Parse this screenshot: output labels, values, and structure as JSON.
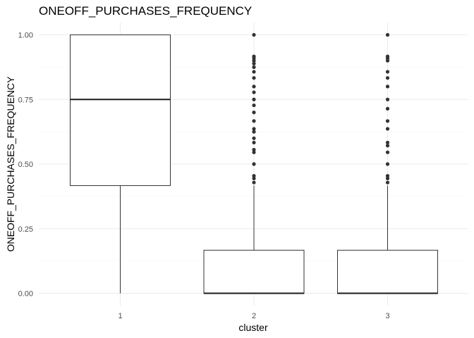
{
  "chart_data": {
    "type": "boxplot",
    "title": "ONEOFF_PURCHASES_FREQUENCY",
    "xlabel": "cluster",
    "ylabel": "ONEOFF_PURCHASES_FREQUENCY",
    "categories": [
      "1",
      "2",
      "3"
    ],
    "ylim": [
      -0.025,
      1.0
    ],
    "yticks": [
      0.0,
      0.25,
      0.5,
      0.75,
      1.0
    ],
    "ytick_labels": [
      "0.00",
      "0.25",
      "0.50",
      "0.75",
      "1.00"
    ],
    "grid": true,
    "legend": "none",
    "boxes": [
      {
        "category": "1",
        "whisker_low": 0.0,
        "q1": 0.4167,
        "median": 0.75,
        "q3": 1.0,
        "whisker_high": 1.0,
        "outliers": []
      },
      {
        "category": "2",
        "whisker_low": 0.0,
        "q1": 0.0,
        "median": 0.0,
        "q3": 0.1667,
        "whisker_high": 0.4167,
        "outliers": [
          0.4286,
          0.4444,
          0.4545,
          0.5,
          0.5455,
          0.5556,
          0.5833,
          0.6,
          0.625,
          0.6364,
          0.6667,
          0.7,
          0.7273,
          0.75,
          0.7778,
          0.8,
          0.8333,
          0.8571,
          0.875,
          0.8889,
          0.9,
          0.9091,
          0.9167,
          1.0
        ]
      },
      {
        "category": "3",
        "whisker_low": 0.0,
        "q1": 0.0,
        "median": 0.0,
        "q3": 0.1667,
        "whisker_high": 0.4167,
        "outliers": [
          0.4286,
          0.4444,
          0.4545,
          0.5,
          0.5455,
          0.5714,
          0.5833,
          0.6364,
          0.6667,
          0.7143,
          0.75,
          0.8,
          0.8333,
          0.8571,
          0.9,
          0.9091,
          0.9167,
          1.0
        ]
      }
    ]
  }
}
